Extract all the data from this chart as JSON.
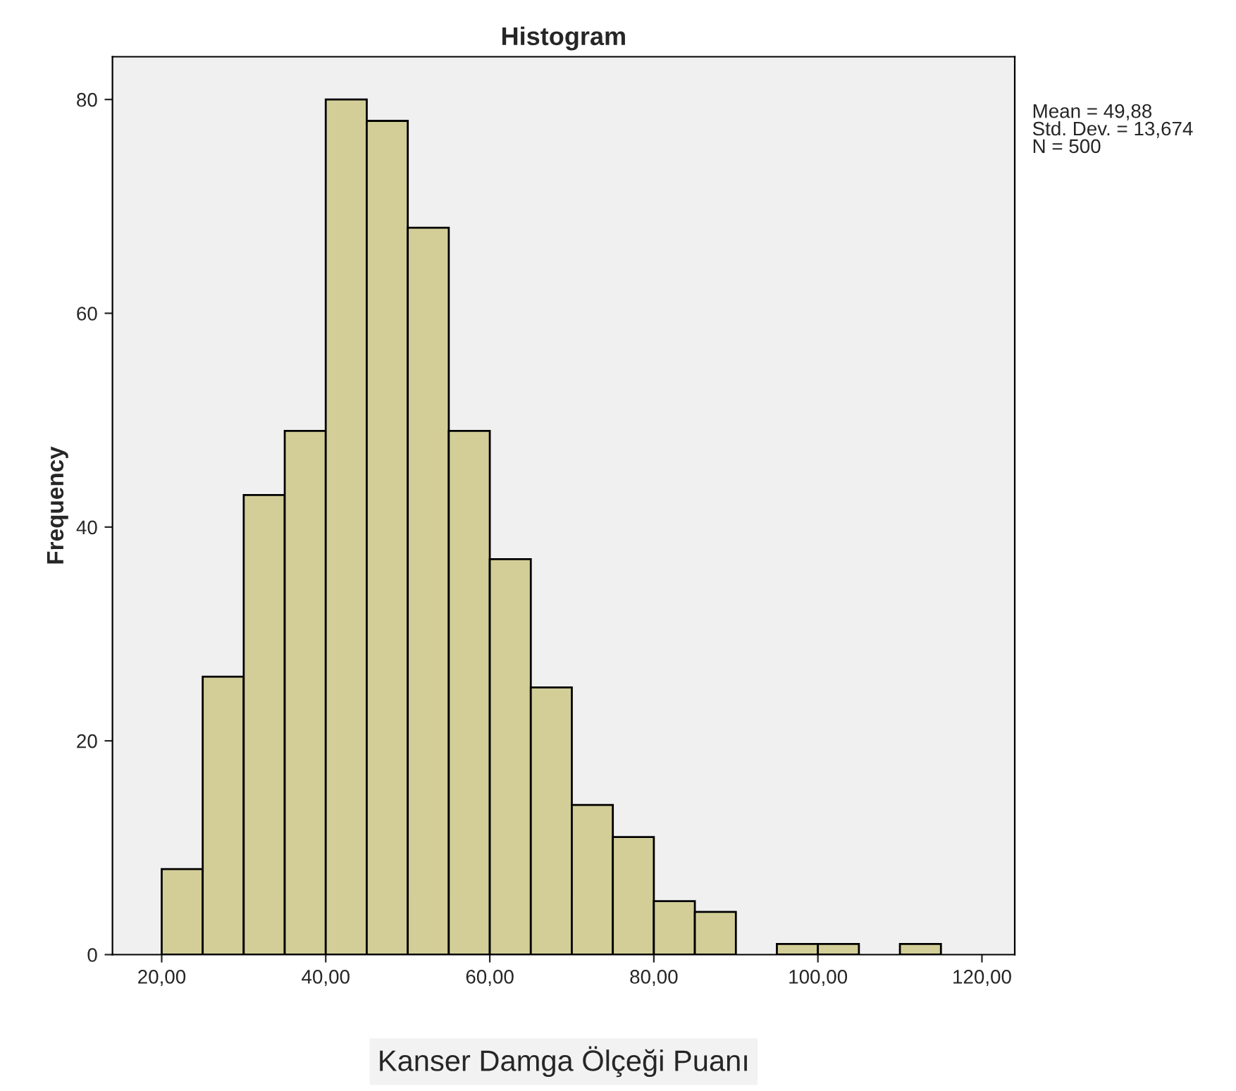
{
  "chart_data": {
    "type": "histogram",
    "title": "Histogram",
    "xlabel": "Kanser Damga Ölçeği Puanı",
    "ylabel": "Frequency",
    "bins": [
      20,
      25,
      30,
      35,
      40,
      45,
      50,
      55,
      60,
      65,
      70,
      75,
      80,
      85,
      90,
      95,
      100,
      105,
      110,
      115
    ],
    "values": [
      8,
      26,
      43,
      49,
      80,
      78,
      68,
      49,
      37,
      25,
      14,
      11,
      5,
      4,
      0,
      1,
      1,
      0,
      1
    ],
    "color": "#d3ce97",
    "xlim": [
      14,
      124
    ],
    "xticks": [
      {
        "value": 20,
        "label": "20,00"
      },
      {
        "value": 40,
        "label": "40,00"
      },
      {
        "value": 60,
        "label": "60,00"
      },
      {
        "value": 80,
        "label": "80,00"
      },
      {
        "value": 100,
        "label": "100,00"
      },
      {
        "value": 120,
        "label": "120,00"
      }
    ],
    "ylim": [
      0,
      84
    ],
    "yticks": [
      0,
      20,
      40,
      60,
      80
    ],
    "grid": false,
    "annotations": [
      "Mean = 49,88\nStd. Dev. = 13,674\nN = 500"
    ]
  }
}
